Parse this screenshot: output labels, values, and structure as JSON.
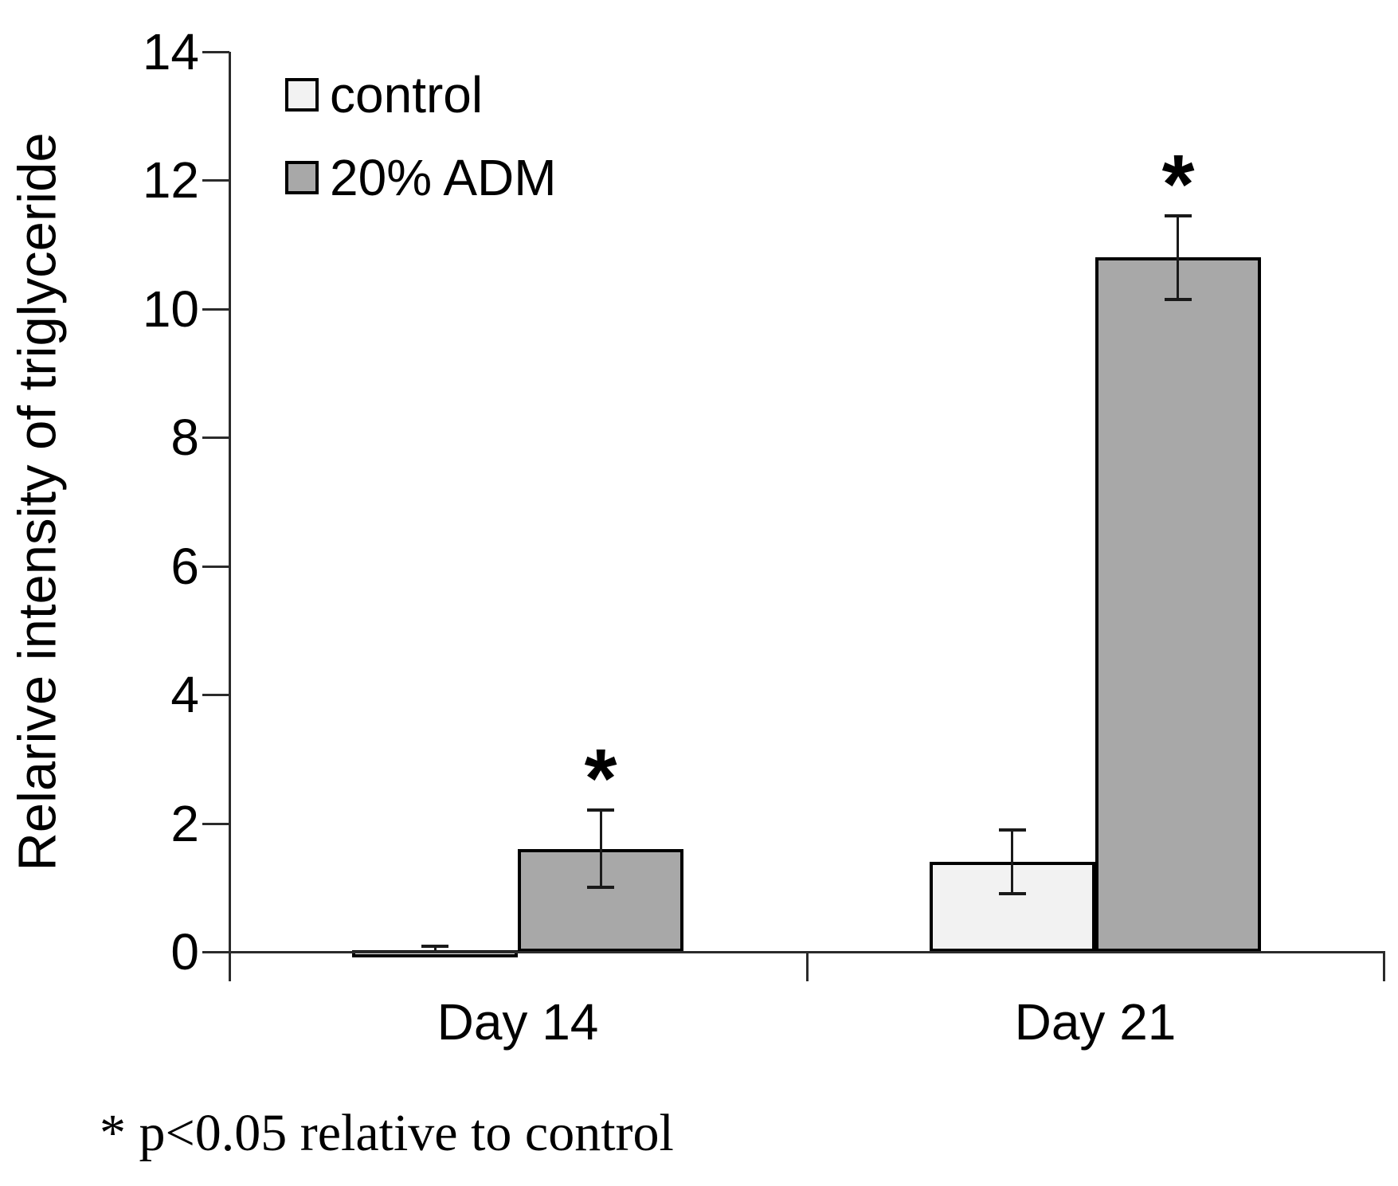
{
  "chart_data": {
    "type": "bar",
    "title": "",
    "categories": [
      "Day 14",
      "Day 21"
    ],
    "series": [
      {
        "name": "control",
        "fill": "#f2f2f2",
        "values": [
          0.02,
          1.4
        ],
        "errors": [
          0.07,
          0.5
        ],
        "significant": [
          false,
          false
        ]
      },
      {
        "name": "20% ADM",
        "fill": "#a8a8a8",
        "values": [
          1.6,
          10.8
        ],
        "errors": [
          0.6,
          0.65
        ],
        "significant": [
          true,
          true
        ]
      }
    ],
    "xlabel": "",
    "ylabel": "Relarive intensity of triglyceride",
    "ylim": [
      0,
      14
    ],
    "yticks": [
      0,
      2,
      4,
      6,
      8,
      10,
      12,
      14
    ],
    "grid": false,
    "legend_position": "top-left",
    "annotation_symbol": "*",
    "footnote": "* p<0.05 relative to control"
  },
  "colors": {
    "background": "#ffffff",
    "axis": "#2b2b2b",
    "bar_border": "#000000",
    "control_fill": "#f2f2f2",
    "adm_fill": "#a8a8a8",
    "error_bar": "#1a1a1a"
  }
}
